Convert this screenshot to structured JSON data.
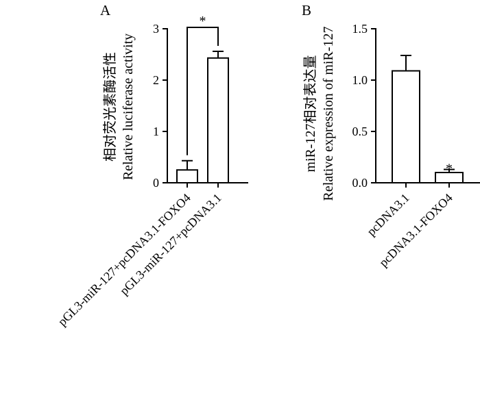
{
  "chart_data": [
    {
      "panel": "A",
      "type": "bar",
      "ylabel": [
        "相对荧光素酶活性",
        "Relative luciferase activity"
      ],
      "ylim": [
        0,
        3
      ],
      "yticks": [
        0,
        1,
        2,
        3
      ],
      "ytick_labels": [
        "0",
        "1",
        "2",
        "3"
      ],
      "categories": [
        "pGL3-miR-127+pcDNA3.1-FOXO4",
        "pGL3-miR-127+pcDNA3.1"
      ],
      "values": [
        0.25,
        2.43
      ],
      "errors": [
        0.18,
        0.13
      ],
      "significance": {
        "label": "*",
        "type": "bracket",
        "between": [
          0,
          1
        ]
      }
    },
    {
      "panel": "B",
      "type": "bar",
      "ylabel": [
        "miR-127相对表达量",
        "Relative expression of miR-127"
      ],
      "ylim": [
        0,
        1.5
      ],
      "yticks": [
        0,
        0.5,
        1.0,
        1.5
      ],
      "ytick_labels": [
        "0.0",
        "0.5",
        "1.0",
        "1.5"
      ],
      "categories": [
        "pcDNA3.1",
        "pcDNA3.1-FOXO4"
      ],
      "values": [
        1.09,
        0.1
      ],
      "errors": [
        0.15,
        0.03
      ],
      "significance": {
        "label": "*",
        "type": "above",
        "bar": 1
      }
    }
  ]
}
